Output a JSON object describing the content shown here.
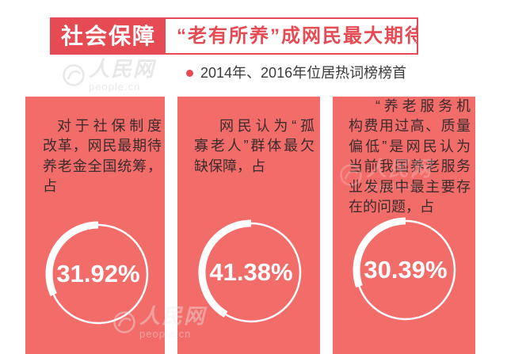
{
  "header": {
    "tag": "社会保障",
    "headline": "“老有所养”成网民最大期待"
  },
  "subtitle": {
    "text": "2014年、2016年位居热词榜榜首"
  },
  "colors": {
    "brand": "#E64A53",
    "panel": "#F26C6A",
    "text": "#3B2C2C",
    "white": "#FFFFFF"
  },
  "watermark": {
    "brand": "人民网",
    "site": "people.cn"
  },
  "chart_data": [
    {
      "type": "pie",
      "caption": [
        "对于社保制度",
        "改革，网民最期待",
        "养老金全国统筹，",
        "占"
      ],
      "value": 31.92,
      "label": "31.92%"
    },
    {
      "type": "pie",
      "caption": [
        "网民认为“孤",
        "寡老人”群体最欠",
        "缺保障，占"
      ],
      "value": 41.38,
      "label": "41.38%"
    },
    {
      "type": "pie",
      "caption": [
        "“养老服务机",
        "构费用过高、质量",
        "偏低”是网民认为",
        "当前我国养老服务",
        "业发展中最主要存",
        "在的问题，占"
      ],
      "value": 30.39,
      "label": "30.39%"
    }
  ]
}
